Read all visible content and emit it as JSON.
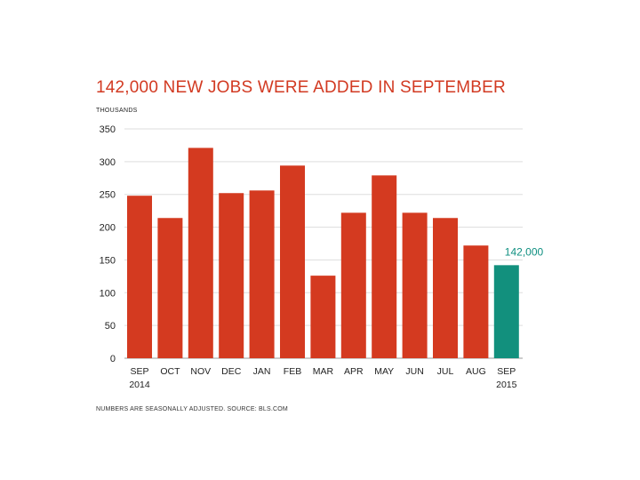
{
  "chart_data": {
    "type": "bar",
    "title": "142,000 NEW JOBS WERE ADDED IN SEPTEMBER",
    "unit_label": "THOUSANDS",
    "source_note": "NUMBERS ARE SEASONALLY ADJUSTED. SOURCE: BLS.COM",
    "categories": [
      "SEP",
      "OCT",
      "NOV",
      "DEC",
      "JAN",
      "FEB",
      "MAR",
      "APR",
      "MAY",
      "JUN",
      "JUL",
      "AUG",
      "SEP"
    ],
    "category_sublabels": [
      "2014",
      "",
      "",
      "",
      "",
      "",
      "",
      "",
      "",
      "",
      "",
      "",
      "2015"
    ],
    "values": [
      248,
      214,
      321,
      252,
      256,
      294,
      126,
      222,
      279,
      222,
      214,
      172,
      142
    ],
    "ylim": [
      0,
      350
    ],
    "yticks": [
      0,
      50,
      100,
      150,
      200,
      250,
      300,
      350
    ],
    "grid": true,
    "colors": {
      "default": "#d43a20",
      "highlight": "#12907d"
    },
    "highlight_index": 12,
    "highlight_label": "142,000"
  }
}
